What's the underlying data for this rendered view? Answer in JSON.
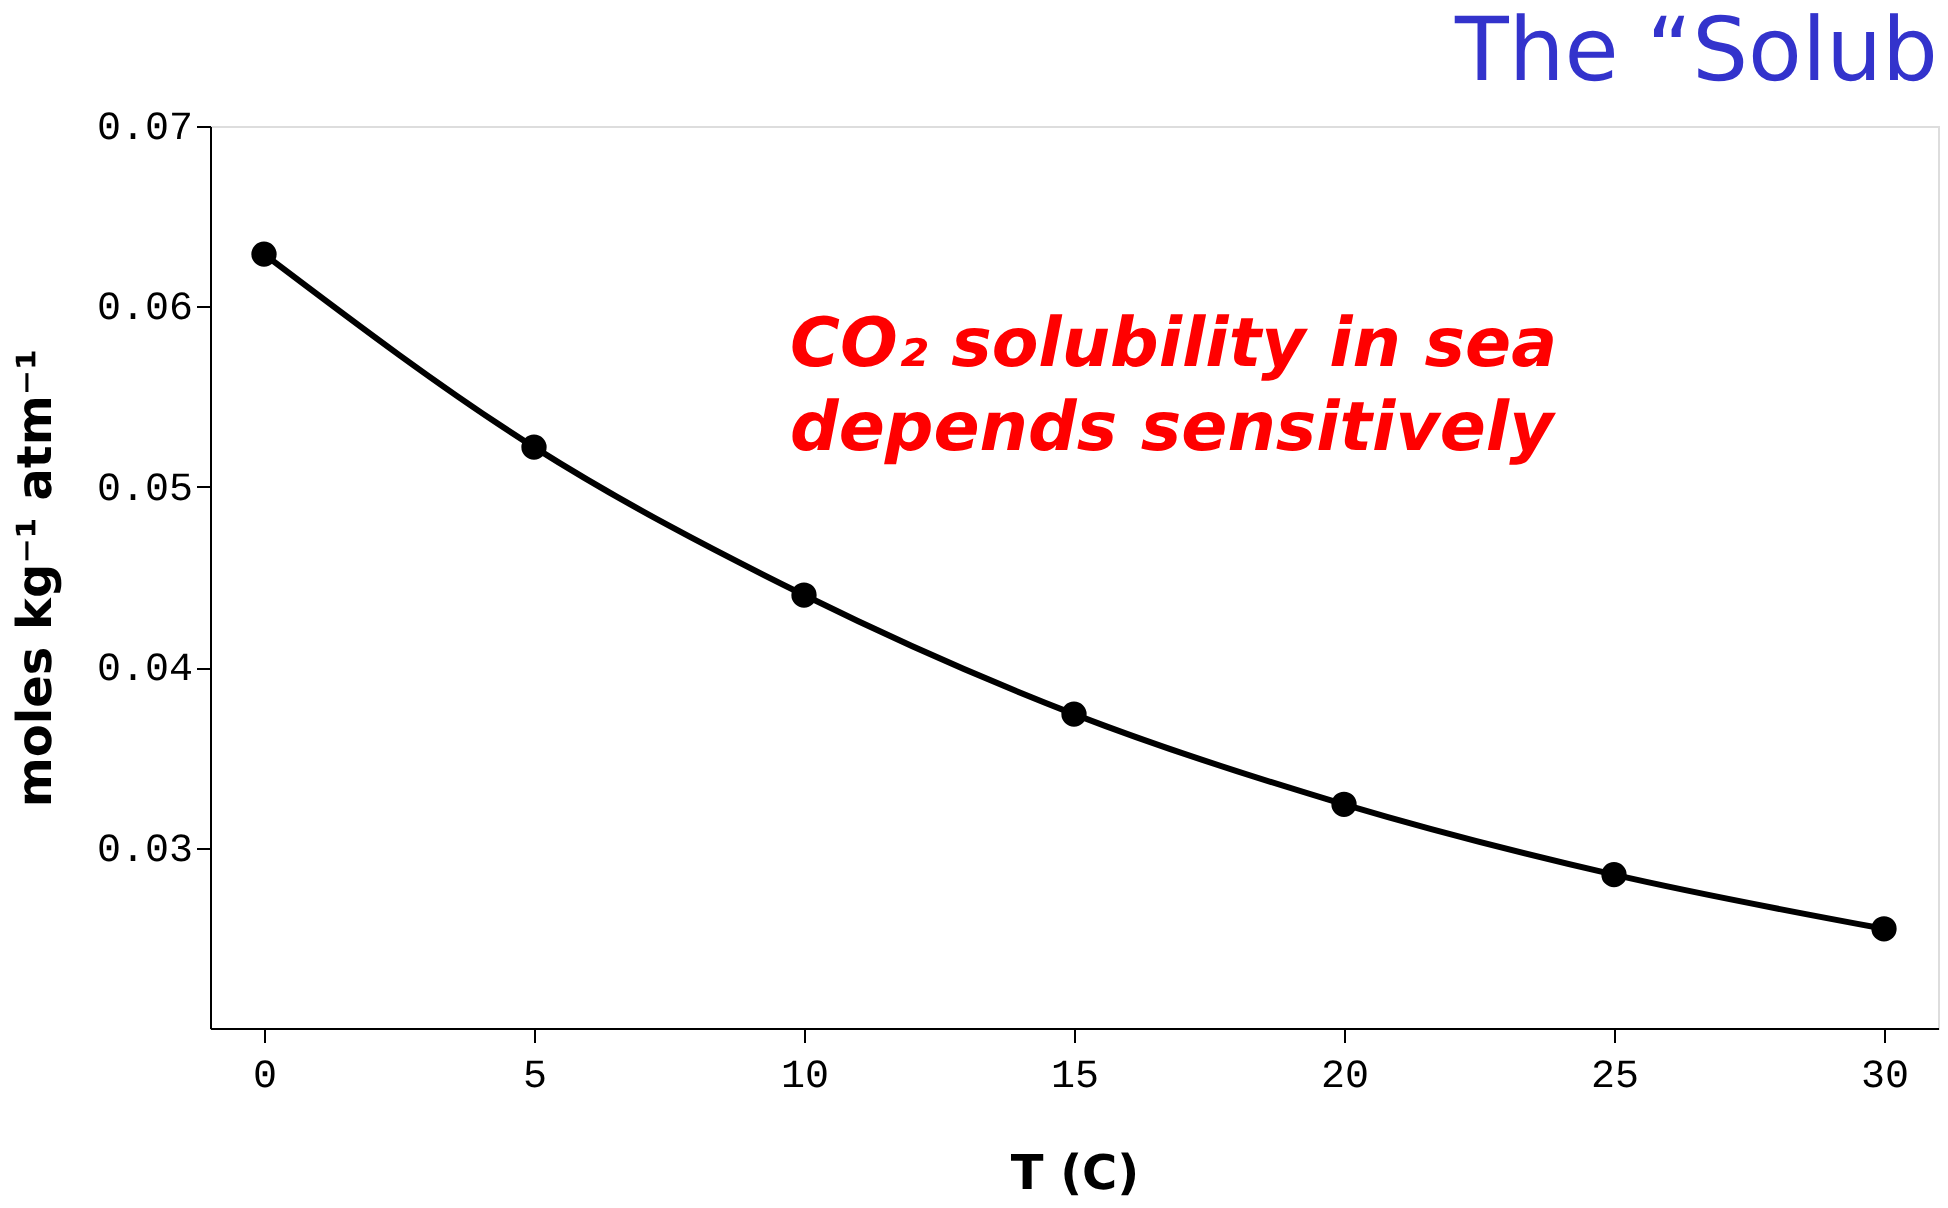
{
  "chart_data": {
    "type": "line",
    "title": "The “Solub",
    "xlabel": "T (C)",
    "ylabel": "moles kg⁻¹ atm⁻¹",
    "x": [
      0,
      5,
      10,
      15,
      20,
      25,
      30
    ],
    "series": [
      {
        "color": "#000000",
        "values": [
          0.0629,
          0.0522,
          0.044,
          0.0374,
          0.0324,
          0.0285,
          0.0255
        ]
      }
    ],
    "xlim": [
      -1,
      31
    ],
    "xticks": [
      0,
      5,
      10,
      15,
      20,
      25,
      30
    ],
    "ylim": [
      0.02,
      0.07
    ],
    "yticks": [
      0.03,
      0.04,
      0.05,
      0.06,
      0.07
    ],
    "marker": "circle",
    "line_style": "solid",
    "grid": false,
    "annotations": [
      "CO₂ solubility in sea",
      "depends sensitively"
    ]
  }
}
